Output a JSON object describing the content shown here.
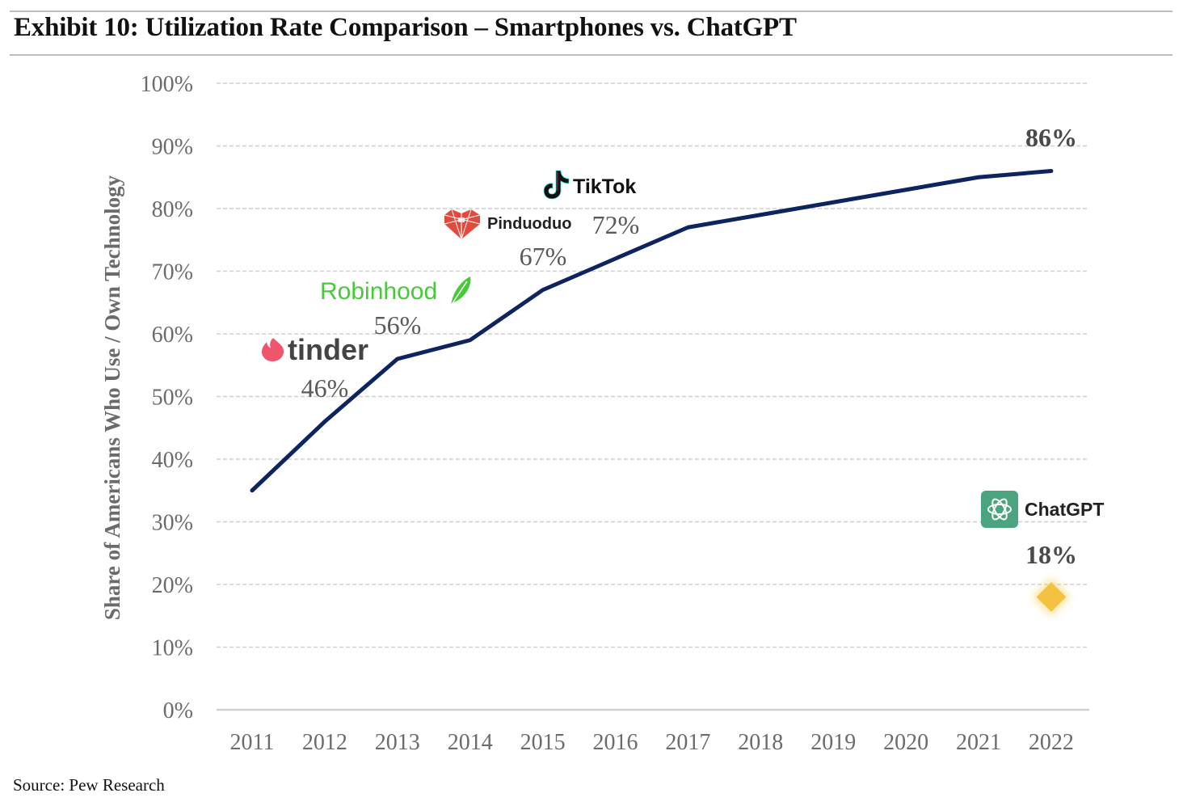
{
  "header": {
    "title": "Exhibit 10: Utilization Rate Comparison – Smartphones vs. ChatGPT"
  },
  "footer": {
    "source": "Source: Pew Research"
  },
  "colors": {
    "line": "#0d2461",
    "chatgpt_marker": "#f3c240",
    "chatgpt_logo_bg": "#4aa47f",
    "tinder": "#f0566b",
    "robinhood": "#48c93a",
    "pinduoduo": "#e04b3d",
    "tiktok_text": "#111111"
  },
  "chart_data": {
    "type": "line",
    "title": "Exhibit 10: Utilization Rate Comparison – Smartphones vs. ChatGPT",
    "xlabel": "",
    "ylabel": "Share of Americans Who Use / Own Technology",
    "categories": [
      "2011",
      "2012",
      "2013",
      "2014",
      "2015",
      "2016",
      "2017",
      "2018",
      "2019",
      "2020",
      "2021",
      "2022"
    ],
    "yticks": [
      "0%",
      "10%",
      "20%",
      "30%",
      "40%",
      "50%",
      "60%",
      "70%",
      "80%",
      "90%",
      "100%"
    ],
    "ylim": [
      0,
      100
    ],
    "grid": true,
    "series": [
      {
        "name": "Smartphones",
        "values": [
          35,
          46,
          56,
          59,
          67,
          72,
          77,
          79,
          81,
          83,
          85,
          86
        ]
      },
      {
        "name": "ChatGPT",
        "marker": "diamond",
        "points": [
          {
            "x": "2022",
            "y": 18
          }
        ]
      }
    ],
    "annotations": [
      {
        "brand": "tinder",
        "label": "tinder",
        "value_label": "46%",
        "x": "2012",
        "y": 46
      },
      {
        "brand": "robinhood",
        "label": "Robinhood",
        "value_label": "56%",
        "x": "2013",
        "y": 56
      },
      {
        "brand": "pinduoduo",
        "label": "Pinduoduo",
        "value_label": "67%",
        "x": "2015",
        "y": 67
      },
      {
        "brand": "tiktok",
        "label": "TikTok",
        "value_label": "72%",
        "x": "2016",
        "y": 72
      },
      {
        "brand": "smartphone-end",
        "label": "",
        "value_label": "86%",
        "x": "2022",
        "y": 86
      },
      {
        "brand": "chatgpt",
        "label": "ChatGPT",
        "value_label": "18%",
        "x": "2022",
        "y": 18
      }
    ]
  }
}
